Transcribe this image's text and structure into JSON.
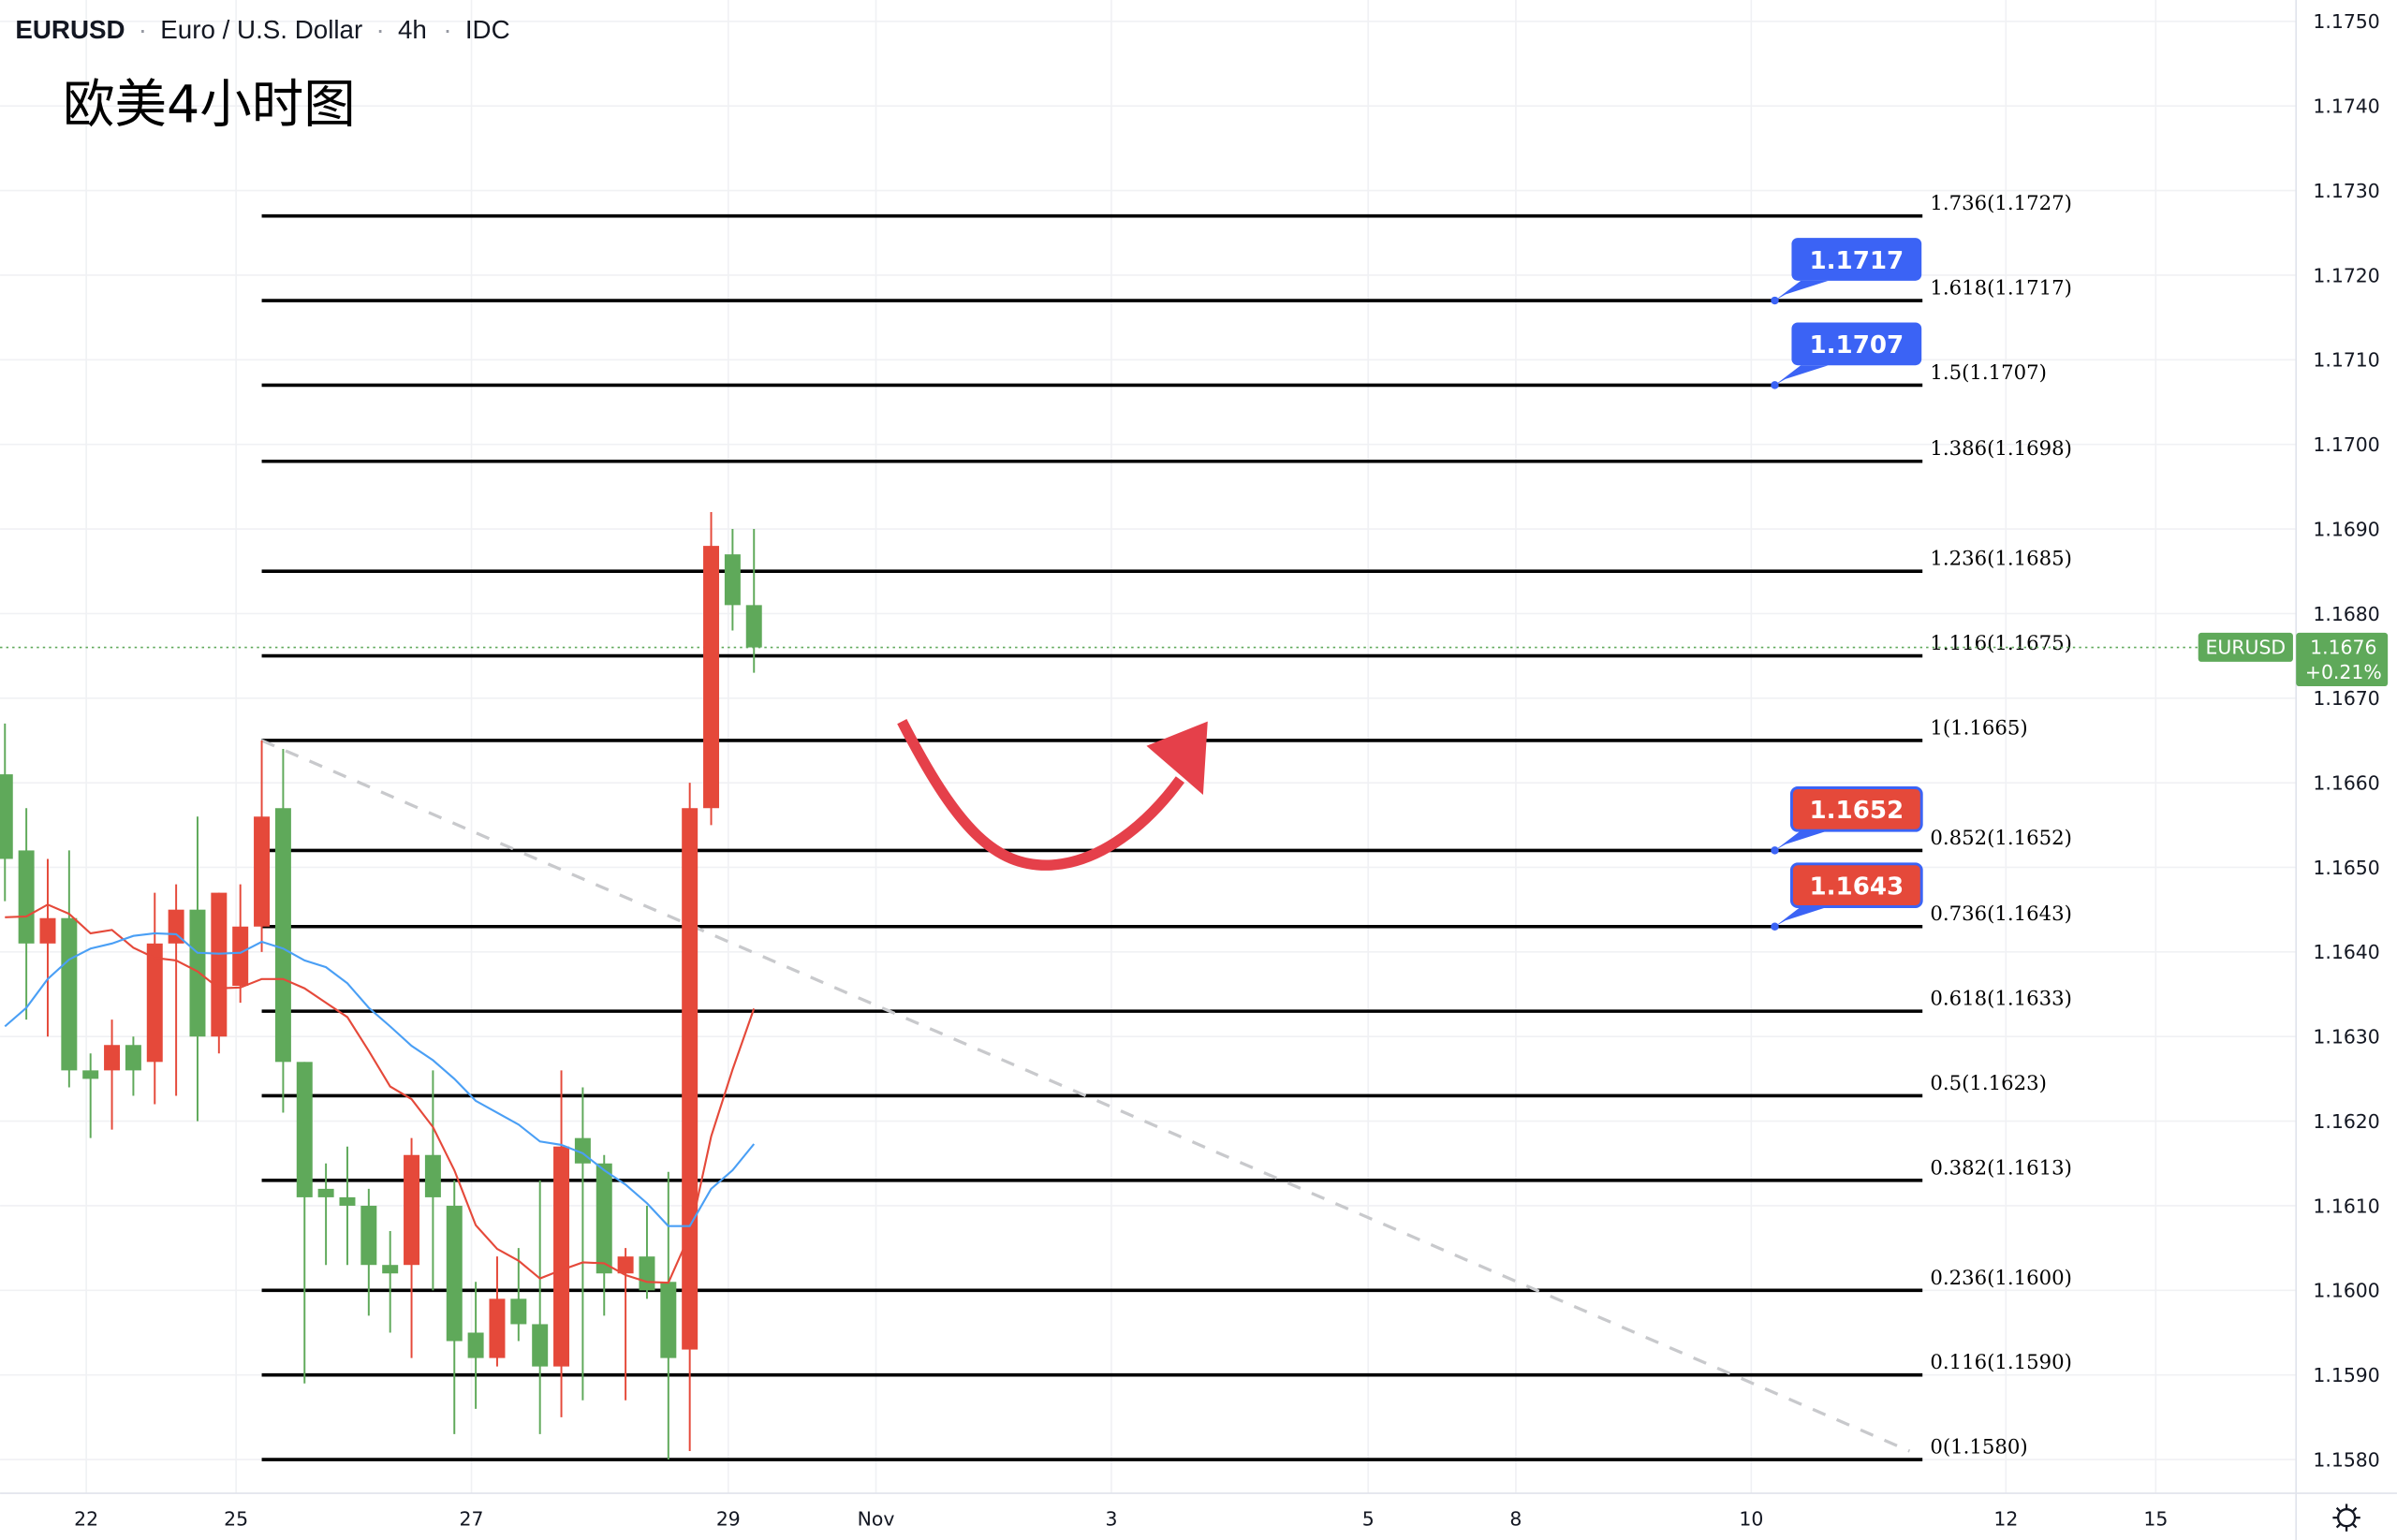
{
  "header": {
    "symbol": "EURUSD",
    "description": "Euro / U.S. Dollar",
    "interval": "4h",
    "source": "IDC",
    "annotation_title": "欧美4小时图"
  },
  "price_tag": {
    "symbol": "EURUSD",
    "price": "1.1676",
    "change": "+0.21%",
    "color": "#5fa95a"
  },
  "colors": {
    "up": "#e5493a",
    "down": "#5fa95a",
    "ma_fast": "#e5493a",
    "ma_slow": "#4a9ff5",
    "fib_line": "#000000",
    "trendline": "#c8c9cc",
    "callout_blue": "#3b63f5",
    "callout_red": "#e5493a",
    "arrow": "#e5404a"
  },
  "chart_data": {
    "type": "candlestick",
    "title": "",
    "y_axis": {
      "side": "right",
      "ylim": [
        1.1575,
        1.1753
      ],
      "ticks": [
        "1.1750",
        "1.1740",
        "1.1730",
        "1.1720",
        "1.1710",
        "1.1700",
        "1.1690",
        "1.1680",
        "1.1670",
        "1.1660",
        "1.1650",
        "1.1640",
        "1.1630",
        "1.1620",
        "1.1610",
        "1.1600",
        "1.1590",
        "1.1580"
      ]
    },
    "x_axis": {
      "ticks": [
        {
          "label": "22",
          "bar": 3.8
        },
        {
          "label": "25",
          "bar": 10.8
        },
        {
          "label": "27",
          "bar": 21.8
        },
        {
          "label": "29",
          "bar": 33.8
        },
        {
          "label": "Nov",
          "bar": 40.7
        },
        {
          "label": "3",
          "bar": 51.7
        },
        {
          "label": "5",
          "bar": 63.7
        },
        {
          "label": "8",
          "bar": 70.6
        },
        {
          "label": "10",
          "bar": 81.6
        },
        {
          "label": "12",
          "bar": 93.5
        },
        {
          "label": "15",
          "bar": 100.5
        }
      ]
    },
    "grid": true,
    "candles": [
      [
        1.1661,
        1.1667,
        1.1646,
        1.1651
      ],
      [
        1.1652,
        1.1657,
        1.1632,
        1.1641
      ],
      [
        1.1641,
        1.1651,
        1.163,
        1.1644
      ],
      [
        1.1644,
        1.1652,
        1.1624,
        1.1626
      ],
      [
        1.1626,
        1.1628,
        1.1618,
        1.1625
      ],
      [
        1.1626,
        1.1632,
        1.1619,
        1.1629
      ],
      [
        1.1629,
        1.163,
        1.1623,
        1.1626
      ],
      [
        1.1627,
        1.1647,
        1.1622,
        1.1641
      ],
      [
        1.1641,
        1.1648,
        1.1623,
        1.1645
      ],
      [
        1.1645,
        1.1656,
        1.162,
        1.163
      ],
      [
        1.163,
        1.1647,
        1.1628,
        1.1647
      ],
      [
        1.1636,
        1.1648,
        1.1634,
        1.1643
      ],
      [
        1.1643,
        1.1665,
        1.164,
        1.1656
      ],
      [
        1.1657,
        1.1664,
        1.1621,
        1.1627
      ],
      [
        1.1627,
        1.1627,
        1.1589,
        1.1611
      ],
      [
        1.1612,
        1.1615,
        1.1603,
        1.1611
      ],
      [
        1.1611,
        1.1617,
        1.1603,
        1.161
      ],
      [
        1.161,
        1.1612,
        1.1597,
        1.1603
      ],
      [
        1.1603,
        1.1607,
        1.1595,
        1.1602
      ],
      [
        1.1603,
        1.1618,
        1.1592,
        1.1616
      ],
      [
        1.1616,
        1.1626,
        1.16,
        1.1611
      ],
      [
        1.161,
        1.1613,
        1.1583,
        1.1594
      ],
      [
        1.1595,
        1.1601,
        1.1586,
        1.1592
      ],
      [
        1.1592,
        1.1604,
        1.1591,
        1.1599
      ],
      [
        1.1599,
        1.1605,
        1.1594,
        1.1596
      ],
      [
        1.1596,
        1.1613,
        1.1583,
        1.1591
      ],
      [
        1.1591,
        1.1626,
        1.1585,
        1.1617
      ],
      [
        1.1618,
        1.1624,
        1.1587,
        1.1615
      ],
      [
        1.1615,
        1.1616,
        1.1597,
        1.1602
      ],
      [
        1.1602,
        1.1605,
        1.1587,
        1.1604
      ],
      [
        1.1604,
        1.161,
        1.1599,
        1.16
      ],
      [
        1.1601,
        1.1614,
        1.158,
        1.1592
      ],
      [
        1.1593,
        1.166,
        1.1581,
        1.1657
      ],
      [
        1.1657,
        1.1692,
        1.1655,
        1.1688
      ],
      [
        1.1687,
        1.169,
        1.1678,
        1.1681
      ],
      [
        1.1681,
        1.169,
        1.1673,
        1.1676
      ]
    ],
    "ma_fast": [
      1.16441,
      1.16442,
      1.16456,
      1.16445,
      1.16422,
      1.16426,
      1.16405,
      1.16393,
      1.1639,
      1.16377,
      1.16357,
      1.16358,
      1.16368,
      1.16368,
      1.16357,
      1.1634,
      1.16323,
      1.16283,
      1.16241,
      1.16226,
      1.16193,
      1.16142,
      1.16077,
      1.16049,
      1.16035,
      1.16014,
      1.16024,
      1.16033,
      1.16032,
      1.16018,
      1.1601,
      1.16009,
      1.16066,
      1.16182,
      1.16261,
      1.16333
    ],
    "ma_slow": [
      1.16312,
      1.16334,
      1.16368,
      1.16391,
      1.16404,
      1.1641,
      1.16419,
      1.16422,
      1.16421,
      1.16399,
      1.16398,
      1.16399,
      1.16412,
      1.16404,
      1.1639,
      1.16382,
      1.16363,
      1.16334,
      1.16312,
      1.16289,
      1.16272,
      1.1625,
      1.16224,
      1.1621,
      1.16196,
      1.16176,
      1.16172,
      1.16162,
      1.16142,
      1.16125,
      1.16103,
      1.16076,
      1.16076,
      1.1612,
      1.16142,
      1.16173
    ],
    "fib_levels": [
      {
        "label": "1.736(1.1727)",
        "price": 1.1727
      },
      {
        "label": "1.618(1.1717)",
        "price": 1.1717
      },
      {
        "label": "1.5(1.1707)",
        "price": 1.1707
      },
      {
        "label": "1.386(1.1698)",
        "price": 1.1698
      },
      {
        "label": "1.236(1.1685)",
        "price": 1.1685
      },
      {
        "label": "1.116(1.1675)",
        "price": 1.1675
      },
      {
        "label": "1(1.1665)",
        "price": 1.1665
      },
      {
        "label": "0.852(1.1652)",
        "price": 1.1652
      },
      {
        "label": "0.736(1.1643)",
        "price": 1.1643
      },
      {
        "label": "0.618(1.1633)",
        "price": 1.1633
      },
      {
        "label": "0.5(1.1623)",
        "price": 1.1623
      },
      {
        "label": "0.382(1.1613)",
        "price": 1.1613
      },
      {
        "label": "0.236(1.1600)",
        "price": 1.16
      },
      {
        "label": "0.116(1.1590)",
        "price": 1.159
      },
      {
        "label": "0(1.1580)",
        "price": 1.158
      }
    ],
    "fib_range_bars": [
      12,
      89.6
    ],
    "trendline": {
      "start": {
        "bar": 12,
        "price": 1.1665
      },
      "end": {
        "bar": 89,
        "price": 1.1581
      },
      "style": "dashed"
    },
    "callouts": [
      {
        "text": "1.1717",
        "price": 1.1717,
        "color": "blue"
      },
      {
        "text": "1.1707",
        "price": 1.1707,
        "color": "blue"
      },
      {
        "text": "1.1652",
        "price": 1.1652,
        "color": "red"
      },
      {
        "text": "1.1643",
        "price": 1.1643,
        "color": "red"
      }
    ],
    "last_price": 1.1676
  },
  "icons": {
    "settings": "gear-icon"
  }
}
